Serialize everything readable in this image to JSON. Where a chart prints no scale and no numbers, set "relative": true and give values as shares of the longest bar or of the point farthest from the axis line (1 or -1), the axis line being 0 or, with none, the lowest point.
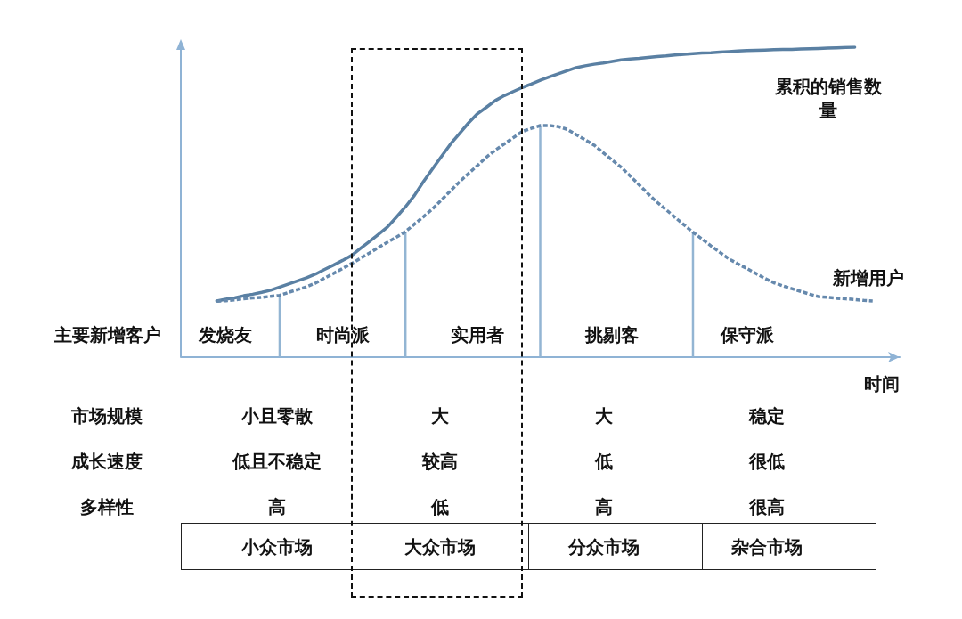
{
  "chart_data": [
    {
      "type": "line",
      "relative": true,
      "xlabel": "时间",
      "annotations": [
        "主要新增客户"
      ],
      "categories": [
        null,
        null,
        null,
        null,
        null,
        "发烧友",
        null,
        null,
        null,
        null,
        null,
        null,
        null,
        null,
        null,
        null,
        null,
        null,
        "时尚派",
        null,
        null,
        null,
        null,
        null,
        null,
        null,
        null,
        null,
        null,
        null,
        null,
        null,
        null,
        "实用者",
        null,
        null,
        null,
        null,
        null,
        null,
        null,
        null,
        null,
        null,
        null,
        null,
        null,
        null,
        "挑剔客",
        null,
        null,
        null,
        null,
        null,
        null,
        null,
        null,
        null,
        null,
        null,
        null,
        null,
        null,
        "保守派",
        null,
        null,
        null,
        null,
        null,
        null,
        null,
        null,
        null,
        null,
        null,
        null,
        null,
        null,
        null,
        null,
        null
      ],
      "series": [
        {
          "name": "累积的销售数量",
          "color": "#5a80a3",
          "line_style": "solid",
          "marker": "none",
          "values": [
            null,
            null,
            null,
            null,
            0.181,
            0.187,
            0.191,
            0.198,
            0.203,
            0.209,
            0.216,
            0.226,
            0.236,
            0.246,
            0.256,
            0.268,
            0.283,
            0.297,
            0.312,
            0.328,
            0.351,
            0.373,
            0.396,
            0.42,
            0.452,
            0.485,
            0.522,
            0.566,
            0.607,
            0.647,
            0.687,
            0.721,
            0.755,
            0.785,
            0.806,
            0.828,
            0.844,
            0.857,
            0.87,
            0.881,
            0.893,
            0.904,
            0.914,
            0.924,
            0.934,
            0.94,
            0.945,
            0.949,
            0.954,
            0.959,
            0.962,
            0.964,
            0.967,
            0.97,
            0.972,
            0.975,
            0.977,
            0.979,
            0.981,
            0.982,
            0.984,
            0.986,
            0.988,
            0.989,
            0.99,
            0.991,
            0.992,
            0.993,
            0.993,
            0.994,
            0.995,
            0.996,
            0.997,
            0.998,
            0.999,
            1.0,
            null,
            null,
            null,
            null,
            null
          ]
        },
        {
          "name": "新增用户",
          "color": "#6689ad",
          "line_style": "dashed",
          "marker": "none",
          "values": [
            null,
            null,
            null,
            null,
            0.18,
            0.182,
            0.185,
            0.188,
            0.191,
            0.193,
            0.196,
            0.199,
            0.209,
            0.218,
            0.227,
            0.239,
            0.255,
            0.27,
            0.286,
            0.302,
            0.319,
            0.336,
            0.354,
            0.371,
            0.387,
            0.405,
            0.429,
            0.453,
            0.478,
            0.507,
            0.536,
            0.565,
            0.592,
            0.618,
            0.645,
            0.668,
            0.688,
            0.708,
            0.728,
            0.738,
            0.747,
            0.747,
            0.744,
            0.735,
            0.718,
            0.701,
            0.684,
            0.66,
            0.636,
            0.613,
            0.585,
            0.556,
            0.527,
            0.5,
            0.476,
            0.451,
            0.427,
            0.403,
            0.381,
            0.359,
            0.338,
            0.317,
            0.301,
            0.286,
            0.27,
            0.254,
            0.24,
            0.23,
            0.221,
            0.212,
            0.203,
            0.195,
            0.193,
            0.19,
            0.188,
            0.186,
            0.183,
            0.181,
            null,
            null,
            null
          ]
        },
        {
          "type": "bar",
          "color": "#93b5d3",
          "values": [
            null,
            null,
            null,
            null,
            null,
            null,
            null,
            null,
            null,
            null,
            null,
            0.199,
            null,
            null,
            null,
            null,
            null,
            null,
            null,
            null,
            null,
            null,
            null,
            null,
            null,
            0.405,
            null,
            null,
            null,
            null,
            null,
            null,
            null,
            null,
            null,
            null,
            null,
            null,
            null,
            null,
            0.747,
            null,
            null,
            null,
            null,
            null,
            null,
            null,
            null,
            null,
            null,
            null,
            null,
            null,
            null,
            null,
            null,
            0.403,
            null,
            null,
            null,
            null,
            null,
            null,
            null,
            null,
            null,
            null,
            null,
            null,
            null,
            null,
            null,
            null,
            null,
            null,
            null,
            null,
            null,
            null,
            null
          ]
        }
      ]
    },
    {
      "type": "other",
      "categories": [
        "小众市场",
        "大众市场",
        "分众市场",
        "杂合市场"
      ],
      "y_categories": [
        "市场规模",
        "成长速度",
        "多样性"
      ],
      "cell_labels": [
        [
          "小且零散",
          "大",
          "大",
          "稳定"
        ],
        [
          "低且不稳定",
          "较高",
          "低",
          "很低"
        ],
        [
          "高",
          "低",
          "高",
          "很高"
        ]
      ]
    }
  ]
}
